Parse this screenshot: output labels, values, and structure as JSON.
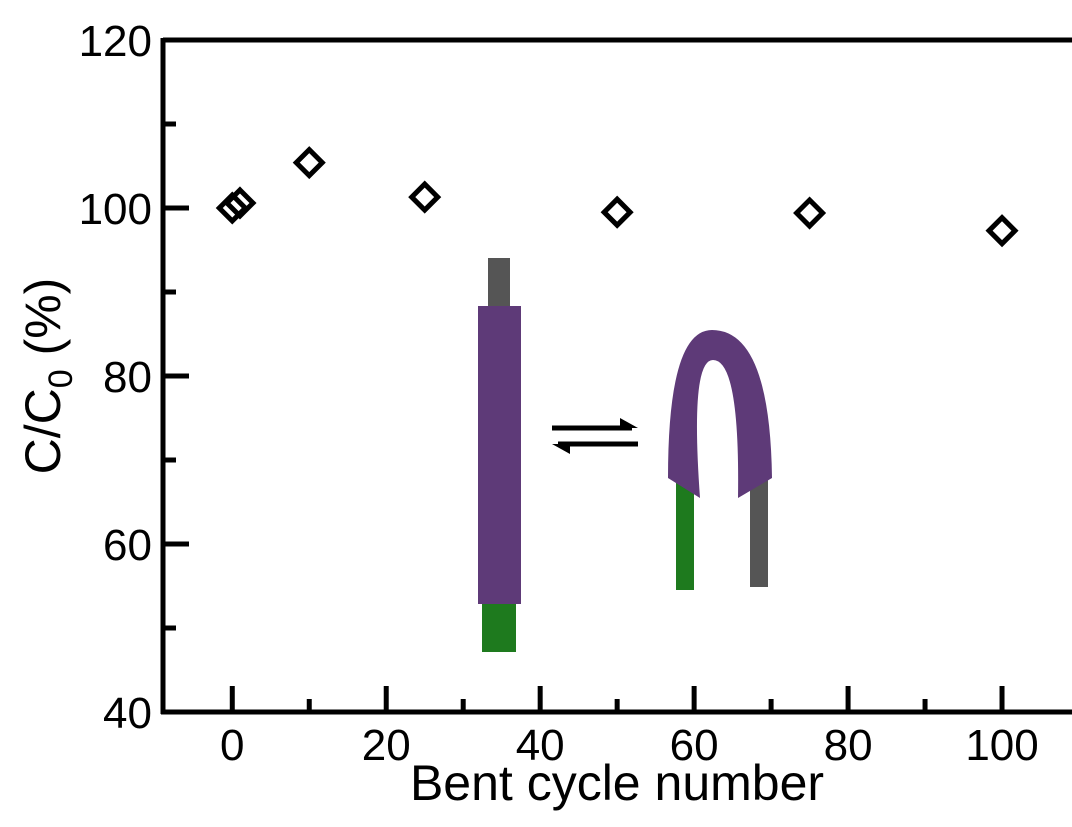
{
  "chart_data": {
    "type": "scatter",
    "x": [
      0,
      1,
      10,
      25,
      50,
      75,
      100
    ],
    "values": [
      100,
      100.6,
      105.4,
      101.3,
      99.5,
      99.4,
      97.3
    ],
    "color": "#000000",
    "xlabel": "Bent cycle number",
    "ylabel": {
      "main": "C/C",
      "sub": "0",
      "rest": " (%)"
    },
    "xlim": [
      -9,
      110
    ],
    "ylim": [
      40,
      120
    ],
    "xticks": [
      0,
      20,
      40,
      60,
      80,
      100
    ],
    "yticks": [
      40,
      60,
      80,
      100,
      120
    ],
    "xminorticks": [
      10,
      30,
      50,
      70,
      90
    ],
    "yminorticks": [
      50,
      70,
      90,
      110
    ]
  }
}
